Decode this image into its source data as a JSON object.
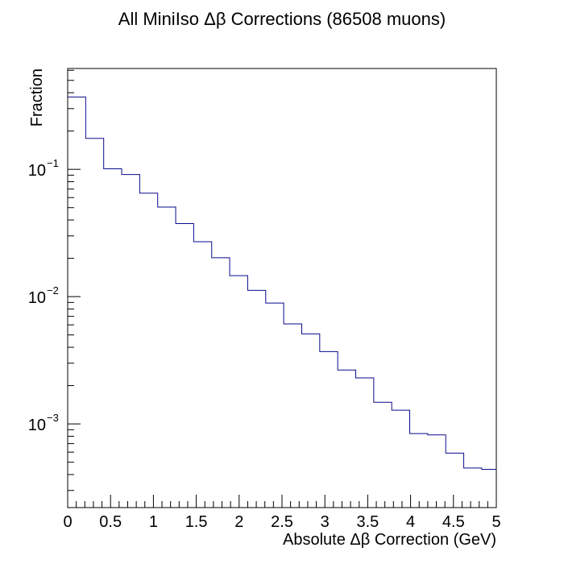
{
  "chart_data": {
    "type": "histogram",
    "title": "All MiniIso Δβ Corrections (86508 muons)",
    "xlabel": "Absolute Δβ Correction (GeV)",
    "ylabel": "Fraction",
    "xlim": [
      0,
      5
    ],
    "ylim": [
      0.00022,
      0.62
    ],
    "yscale": "log",
    "bin_edges": [
      0,
      0.21,
      0.42,
      0.63,
      0.84,
      1.05,
      1.26,
      1.47,
      1.68,
      1.89,
      2.1,
      2.31,
      2.52,
      2.73,
      2.94,
      3.15,
      3.36,
      3.57,
      3.78,
      3.99,
      4.2,
      4.41,
      4.62,
      4.83,
      5.0
    ],
    "values": [
      0.37,
      0.175,
      0.101,
      0.091,
      0.065,
      0.0505,
      0.0375,
      0.027,
      0.0202,
      0.0146,
      0.0112,
      0.0089,
      0.0061,
      0.0051,
      0.0037,
      0.00265,
      0.0023,
      0.00148,
      0.00128,
      0.00084,
      0.00082,
      0.00059,
      0.00045,
      0.00044
    ],
    "x_ticks": [
      {
        "value": 0,
        "label": "0"
      },
      {
        "value": 0.5,
        "label": "0.5"
      },
      {
        "value": 1,
        "label": "1"
      },
      {
        "value": 1.5,
        "label": "1.5"
      },
      {
        "value": 2,
        "label": "2"
      },
      {
        "value": 2.5,
        "label": "2.5"
      },
      {
        "value": 3,
        "label": "3"
      },
      {
        "value": 3.5,
        "label": "3.5"
      },
      {
        "value": 4,
        "label": "4"
      },
      {
        "value": 4.5,
        "label": "4.5"
      },
      {
        "value": 5,
        "label": "5"
      }
    ],
    "y_ticks": [
      {
        "value": 0.1,
        "base": "10",
        "exp": "−1"
      },
      {
        "value": 0.01,
        "base": "10",
        "exp": "−2"
      },
      {
        "value": 0.001,
        "base": "10",
        "exp": "−3"
      }
    ],
    "grid": false,
    "colors": {
      "line": "#0a0a8c",
      "axis": "#000000"
    }
  }
}
